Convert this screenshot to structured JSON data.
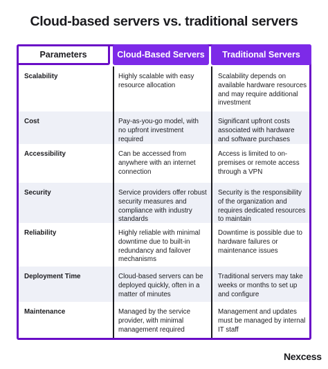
{
  "title": "Cloud-based servers vs. traditional servers",
  "headers": {
    "parameters": "Parameters",
    "cloud": "Cloud-Based Servers",
    "traditional": "Traditional Servers"
  },
  "rows": [
    {
      "parameter": "Scalability",
      "cloud": "Highly scalable with easy resource allocation",
      "traditional": "Scalability depends on available hardware resources and may require additional investment"
    },
    {
      "parameter": "Cost",
      "cloud": "Pay-as-you-go model, with no upfront investment required",
      "traditional": "Significant upfront costs associated with hardware and software purchases"
    },
    {
      "parameter": "Accessibility",
      "cloud": "Can be accessed from anywhere with an internet connection",
      "traditional": "Access is limited to on-premises or remote access through a VPN"
    },
    {
      "parameter": "Security",
      "cloud": "Service providers offer robust security measures and compliance with industry standards",
      "traditional": "Security is the responsibility of the organization and requires dedicated resources to maintain"
    },
    {
      "parameter": "Reliability",
      "cloud": "Highly reliable with minimal downtime due to built-in redundancy and failover mechanisms",
      "traditional": "Downtime is possible due to hardware failures or maintenance issues"
    },
    {
      "parameter": "Deployment Time",
      "cloud": "Cloud-based servers can be deployed quickly, often in a matter of minutes",
      "traditional": "Traditional servers may take weeks or months to set up and configure"
    },
    {
      "parameter": "Maintenance",
      "cloud": "Managed by the service provider, with minimal management required",
      "traditional": "Management and updates must be managed by internal IT staff"
    }
  ],
  "brand": "Nexcess",
  "colors": {
    "accent": "#7d2ae8",
    "border": "#6a0dc7",
    "row_shade": "#eef0f7",
    "text": "#1b1b1f"
  }
}
